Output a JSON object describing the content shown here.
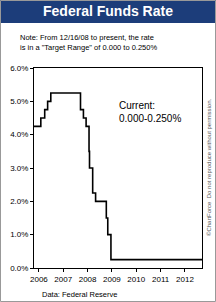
{
  "chart_data": {
    "type": "line",
    "title": "Federal Funds Rate",
    "note": [
      "Note: From 12/16/08 to present, the rate",
      "is in a \"Target Range\" of 0.000 to 0.250%"
    ],
    "current_label": [
      "Current:",
      "0.000-0.250%"
    ],
    "source": "Data: Federal Reserve",
    "copyright": "©ChartForce  Do not reproduce without permission.",
    "x": [
      2005.8,
      2006.08,
      2006.24,
      2006.36,
      2006.49,
      2007.71,
      2007.83,
      2007.94,
      2008.06,
      2008.08,
      2008.21,
      2008.33,
      2008.77,
      2008.83,
      2008.96,
      2012.7
    ],
    "values": [
      4.25,
      4.5,
      4.75,
      5.0,
      5.25,
      4.75,
      4.5,
      4.25,
      3.5,
      3.0,
      2.25,
      2.0,
      1.5,
      1.0,
      0.25,
      0.25
    ],
    "color": "#000000",
    "line_style": "step",
    "xlim": [
      2005.8,
      2012.7
    ],
    "xticks": [
      2006,
      2007,
      2008,
      2009,
      2010,
      2011,
      2012
    ],
    "ylim": [
      0,
      6
    ],
    "yticks": [
      {
        "value": 0,
        "label": "0.0%"
      },
      {
        "value": 1,
        "label": "1.0%"
      },
      {
        "value": 2,
        "label": "2.0%"
      },
      {
        "value": 3,
        "label": "3.0%"
      },
      {
        "value": 4,
        "label": "4.0%"
      },
      {
        "value": 5,
        "label": "5.0%"
      },
      {
        "value": 6,
        "label": "6.0%"
      }
    ],
    "grid": false
  }
}
